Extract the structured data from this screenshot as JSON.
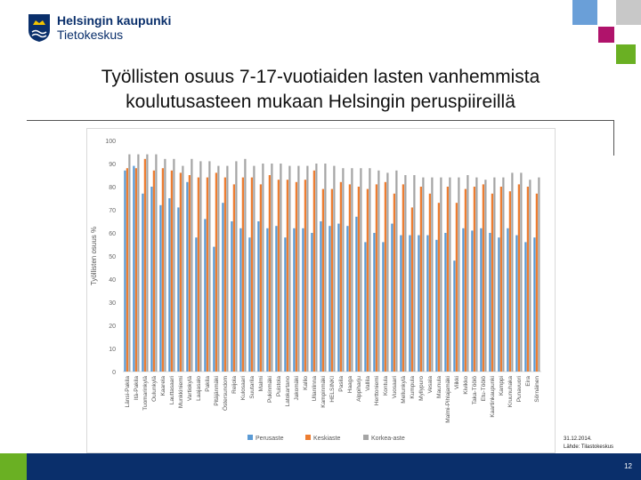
{
  "header": {
    "logo_line1": "Helsingin kaupunki",
    "logo_line2": "Tietokeskus",
    "title_line1": "Työllisten osuus 7-17-vuotiaiden lasten vanhemmista",
    "title_line2": "koulutusasteen mukaan Helsingin peruspiireillä"
  },
  "colors": {
    "navy": "#0a2f6b",
    "green": "#6ab023",
    "magenta": "#b0136b",
    "light_blue": "#6a9fd8",
    "pale_gray": "#c8c8c8"
  },
  "footer": {
    "date": "31.12.2014.",
    "source": "Lähde: Tilastokeskus",
    "page_number": "12"
  },
  "chart_data": {
    "type": "bar",
    "title": "",
    "xlabel": "",
    "ylabel": "Työllisten osuus %",
    "ylim": [
      0,
      100
    ],
    "yticks": [
      0,
      10,
      20,
      30,
      40,
      50,
      60,
      70,
      80,
      90,
      100
    ],
    "grid": false,
    "legend_position": "bottom",
    "categories": [
      "Länsi-Pakila",
      "Itä-Pakila",
      "Tuomarinkylä",
      "Oulunkylä",
      "Kaarela",
      "Lauttasaari",
      "Munkkiniemi",
      "Vartiokylä",
      "Laajasalo",
      "Pakila",
      "Pitäjänmäki",
      "Östersundom",
      "Reijola",
      "Kulosaari",
      "Suutarila",
      "Malmi",
      "Pukinmäki",
      "Puistola",
      "Latokartano",
      "Jakomäki",
      "Kallio",
      "Ullanlinna",
      "Kampinmäki",
      "HELSINKI",
      "Pasila",
      "Haaga",
      "Alppiharju",
      "Vallila",
      "Herttoniemi",
      "Kontula",
      "Vuosaari",
      "Mellunkylä",
      "Kumpula",
      "Myllypuro",
      "Vesala",
      "Maunula",
      "Malmi-Pihlajamäki",
      "Viikki",
      "Kivikko",
      "Taka-Töölö",
      "Etu-Töölö",
      "Kaartinkaupunki",
      "Kamppi",
      "Kruunuhaka",
      "Punavuori",
      "Eira",
      "Sörnäinen"
    ],
    "series": [
      {
        "name": "Perusaste",
        "color": "#5b9bd5",
        "values": [
          87,
          89,
          77,
          80,
          72,
          75,
          71,
          82,
          58,
          66,
          54,
          73,
          65,
          62,
          58,
          65,
          62,
          63,
          58,
          62,
          62,
          60,
          65,
          63,
          64,
          63,
          67,
          56,
          60,
          56,
          64,
          59,
          59,
          59,
          59,
          57,
          60,
          48,
          62,
          61,
          62,
          60,
          58,
          62,
          59,
          56,
          58
        ]
      },
      {
        "name": "Keskiaste",
        "color": "#ed7d31",
        "values": [
          88,
          88,
          92,
          87,
          88,
          87,
          86,
          85,
          84,
          84,
          86,
          84,
          81,
          84,
          84,
          81,
          85,
          83,
          83,
          82,
          83,
          87,
          79,
          79,
          82,
          81,
          80,
          79,
          81,
          82,
          77,
          81,
          71,
          80,
          77,
          73,
          80,
          73,
          79,
          80,
          81,
          77,
          80,
          78,
          81,
          80,
          77
        ]
      },
      {
        "name": "Korkea-aste",
        "color": "#a5a5a5",
        "values": [
          94,
          94,
          94,
          94,
          92,
          92,
          89,
          92,
          91,
          91,
          89,
          89,
          91,
          92,
          89,
          90,
          90,
          90,
          89,
          89,
          89,
          90,
          90,
          89,
          88,
          88,
          88,
          88,
          87,
          86,
          87,
          85,
          85,
          84,
          84,
          84,
          84,
          84,
          85,
          84,
          83,
          84,
          84,
          86,
          86,
          83,
          84
        ]
      }
    ]
  }
}
